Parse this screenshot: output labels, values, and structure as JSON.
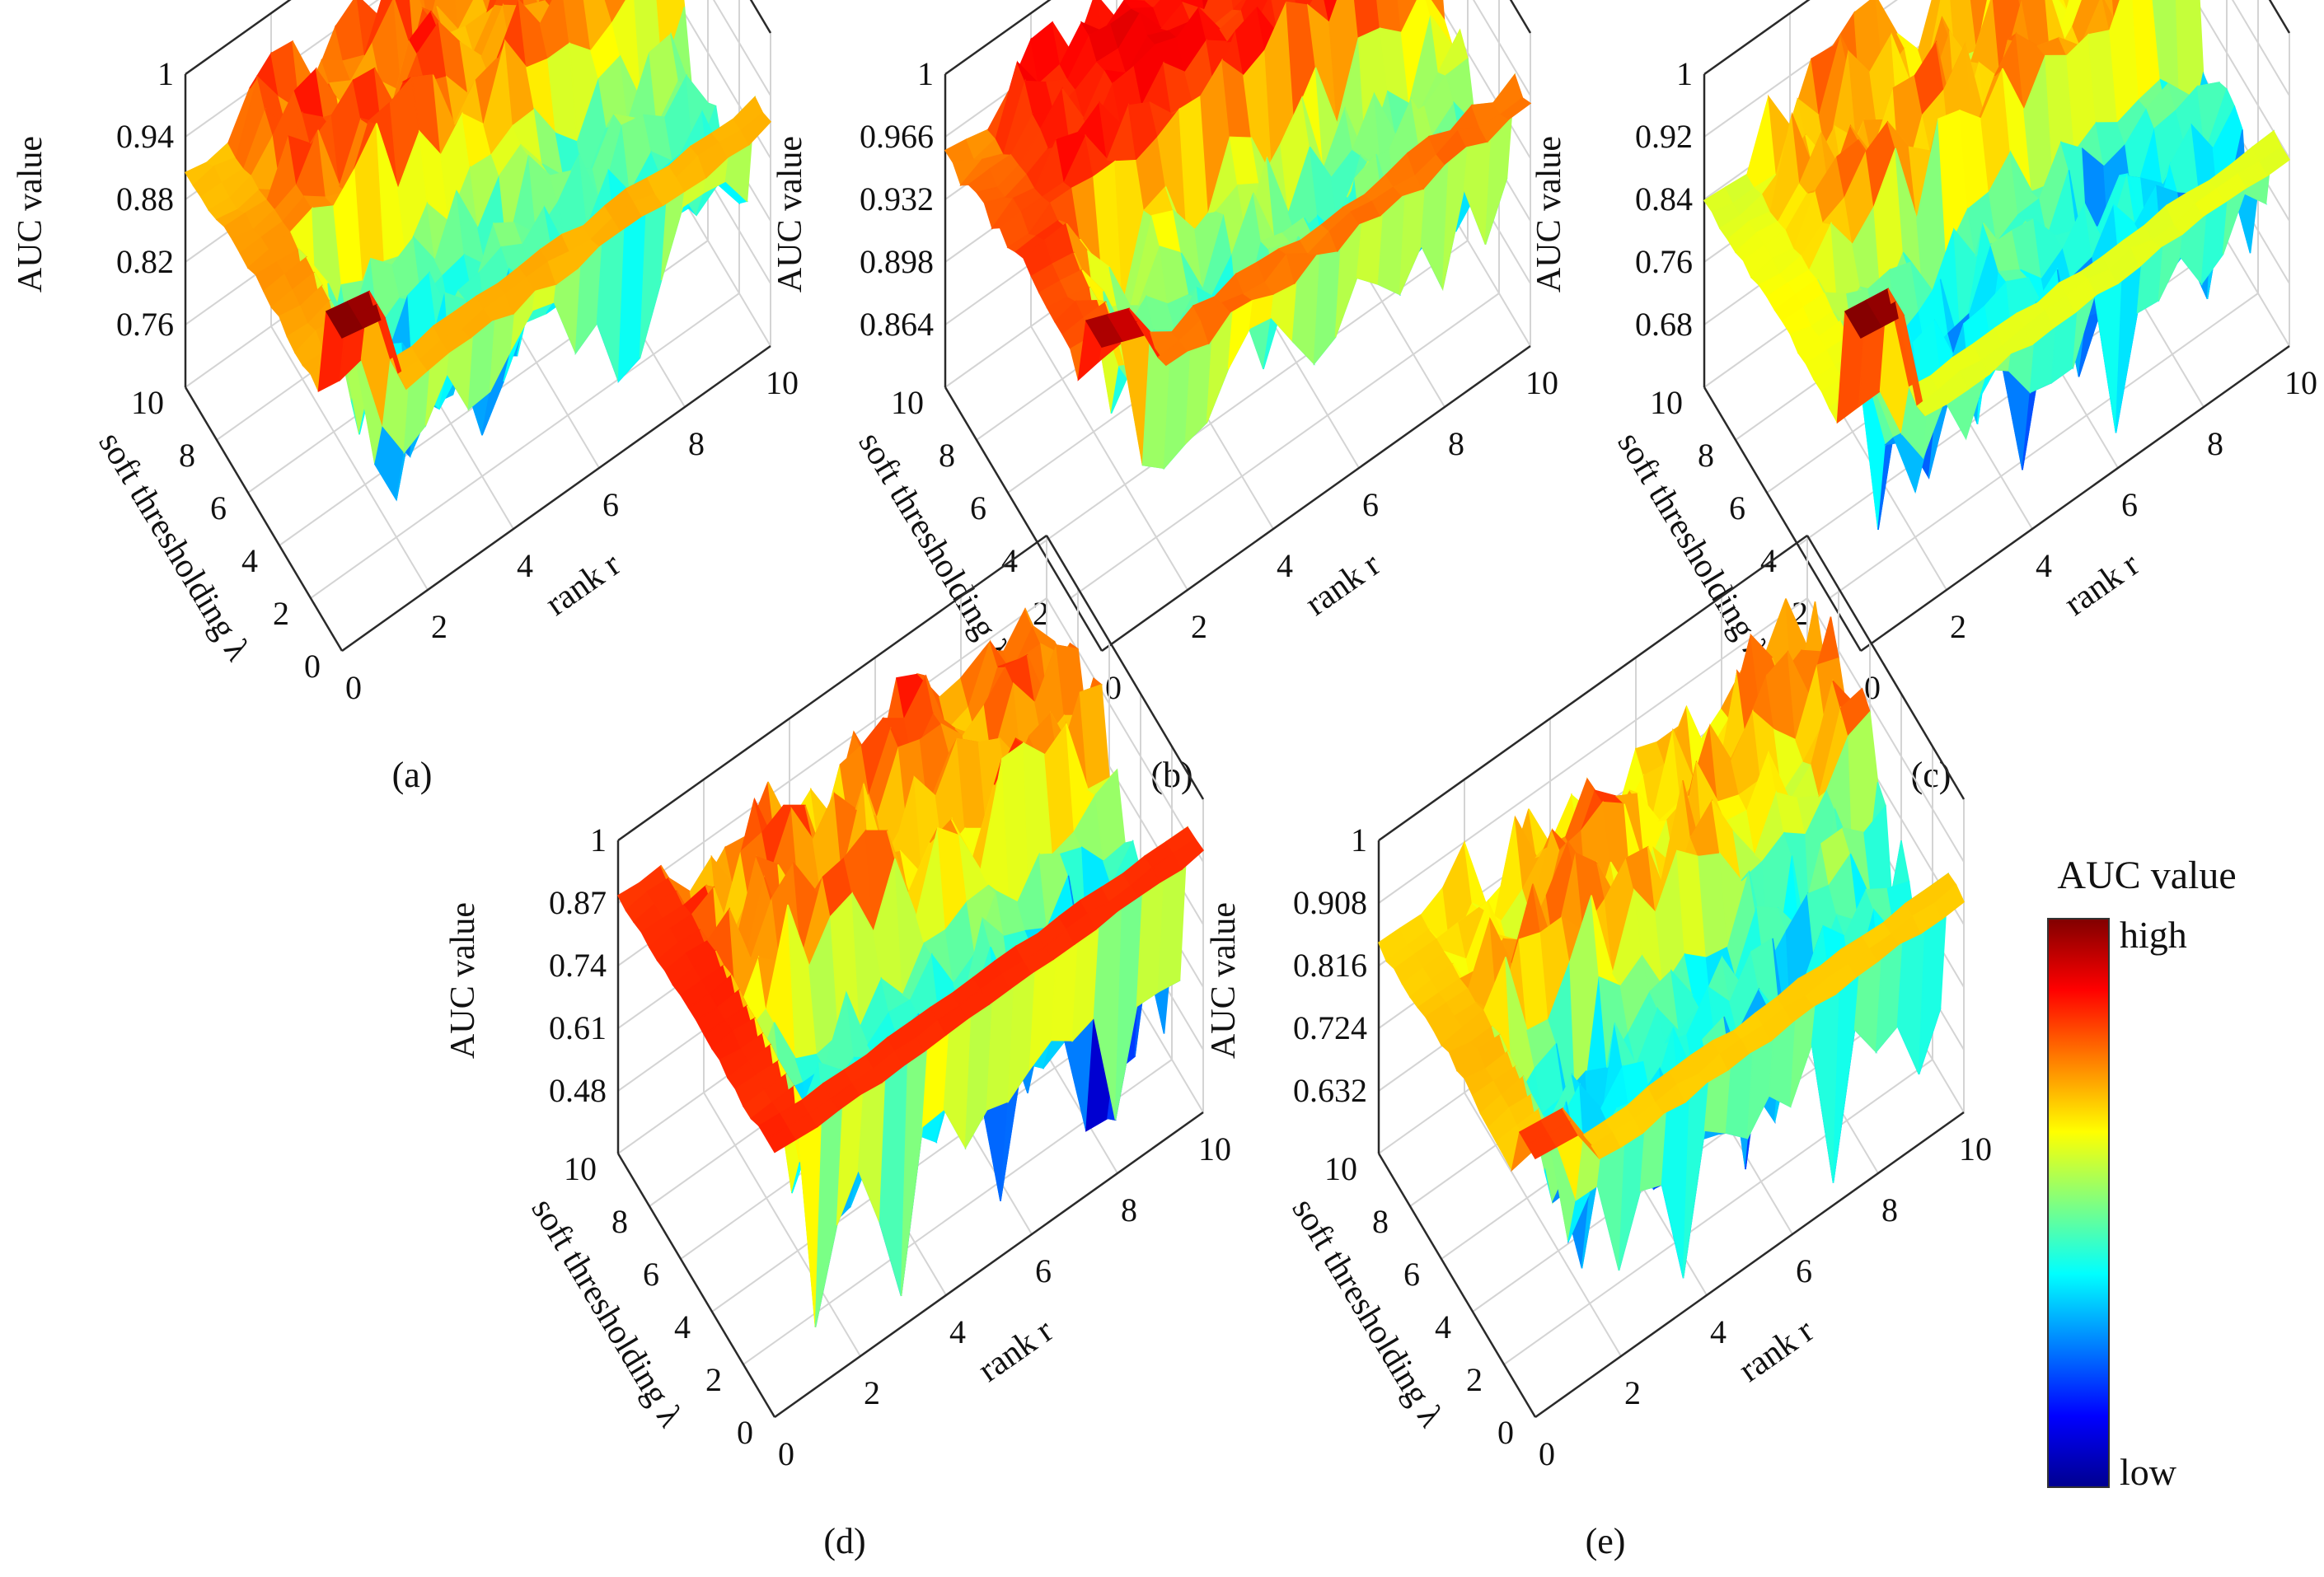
{
  "figure": {
    "colorbar": {
      "title": "AUC value",
      "high_label": "high",
      "low_label": "low",
      "colormap": "jet"
    },
    "colors": {
      "jet": [
        "#00008f",
        "#0000ff",
        "#0080ff",
        "#00ffff",
        "#80ff80",
        "#ffff00",
        "#ff8000",
        "#ff0000",
        "#800000"
      ],
      "grid": "#d4d4d4",
      "axis": "#2a2a2a"
    }
  },
  "chart_data": [
    {
      "type": "surface3d",
      "panel_label": "(a)",
      "xlabel": "rank r",
      "ylabel": "soft thresholding λ",
      "zlabel": "AUC value",
      "x_ticks": [
        "0",
        "2",
        "4",
        "6",
        "8",
        "10"
      ],
      "y_ticks": [
        "0",
        "2",
        "4",
        "6",
        "8",
        "10"
      ],
      "z_ticks": [
        "0.76",
        "0.82",
        "0.88",
        "0.94",
        "1"
      ],
      "z_range": [
        0.7,
        1.0
      ],
      "x_range": [
        0,
        10
      ],
      "y_range": [
        0,
        10
      ],
      "grid": true,
      "surface": {
        "peak": 1.0,
        "ridge": 0.92,
        "plateau": 0.93,
        "floor": 0.7,
        "dip": 0.13,
        "ridge_r": 1,
        "ridge_l": 1,
        "seed": 11
      }
    },
    {
      "type": "surface3d",
      "panel_label": "(b)",
      "xlabel": "rank r",
      "ylabel": "soft thresholding λ",
      "zlabel": "AUC value",
      "x_ticks": [
        "0",
        "2",
        "4",
        "6",
        "8",
        "10"
      ],
      "y_ticks": [
        "0",
        "2",
        "4",
        "6",
        "8",
        "10"
      ],
      "z_ticks": [
        "0.864",
        "0.898",
        "0.932",
        "0.966",
        "1"
      ],
      "z_range": [
        0.83,
        1.0
      ],
      "x_range": [
        0,
        10
      ],
      "y_range": [
        0,
        10
      ],
      "grid": true,
      "surface": {
        "peak": 0.995,
        "ridge": 0.97,
        "plateau": 0.975,
        "floor": 0.83,
        "dip": 0.06,
        "ridge_r": 1,
        "ridge_l": 1,
        "seed": 23
      }
    },
    {
      "type": "surface3d",
      "panel_label": "(c)",
      "xlabel": "rank r",
      "ylabel": "soft thresholding λ",
      "zlabel": "AUC value",
      "x_ticks": [
        "0",
        "2",
        "4",
        "6",
        "8",
        "10"
      ],
      "y_ticks": [
        "0",
        "2",
        "4",
        "6",
        "8",
        "10"
      ],
      "z_ticks": [
        "0.68",
        "0.76",
        "0.84",
        "0.92",
        "1"
      ],
      "z_range": [
        0.6,
        1.0
      ],
      "x_range": [
        0,
        10
      ],
      "y_range": [
        0,
        10
      ],
      "grid": true,
      "surface": {
        "peak": 1.0,
        "ridge": 0.85,
        "plateau": 0.88,
        "floor": 0.6,
        "dip": 0.2,
        "ridge_r": 1,
        "ridge_l": 1,
        "seed": 37
      }
    },
    {
      "type": "surface3d",
      "panel_label": "(d)",
      "xlabel": "rank r",
      "ylabel": "soft thresholding λ",
      "zlabel": "AUC value",
      "x_ticks": [
        "0",
        "2",
        "4",
        "6",
        "8",
        "10"
      ],
      "y_ticks": [
        "0",
        "2",
        "4",
        "6",
        "8",
        "10"
      ],
      "z_ticks": [
        "0.48",
        "0.61",
        "0.74",
        "0.87",
        "1"
      ],
      "z_range": [
        0.35,
        1.0
      ],
      "x_range": [
        0,
        10
      ],
      "y_range": [
        0,
        10
      ],
      "grid": true,
      "surface": {
        "peak": 0.9,
        "ridge": 0.9,
        "plateau": 0.82,
        "floor": 0.35,
        "dip": 0.28,
        "ridge_r": 1,
        "ridge_l": 1,
        "seed": 53
      }
    },
    {
      "type": "surface3d",
      "panel_label": "(e)",
      "xlabel": "rank r",
      "ylabel": "soft thresholding λ",
      "zlabel": "AUC value",
      "x_ticks": [
        "0",
        "2",
        "4",
        "6",
        "8",
        "10"
      ],
      "y_ticks": [
        "0",
        "2",
        "4",
        "6",
        "8",
        "10"
      ],
      "z_ticks": [
        "0.632",
        "0.724",
        "0.816",
        "0.908",
        "1"
      ],
      "z_range": [
        0.54,
        1.0
      ],
      "x_range": [
        0,
        10
      ],
      "y_range": [
        0,
        10
      ],
      "grid": true,
      "surface": {
        "peak": 0.92,
        "ridge": 0.86,
        "plateau": 0.86,
        "floor": 0.54,
        "dip": 0.22,
        "ridge_r": 1,
        "ridge_l": 1,
        "seed": 71
      }
    }
  ]
}
